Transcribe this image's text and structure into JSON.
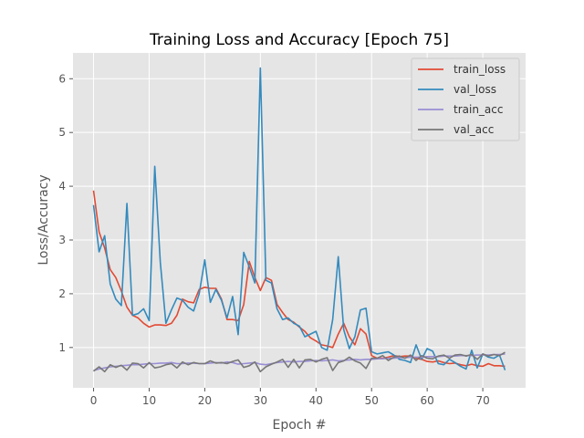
{
  "chart_data": {
    "type": "line",
    "title": "Training Loss and Accuracy [Epoch 75]",
    "xlabel": "Epoch #",
    "ylabel": "Loss/Accuracy",
    "xlim": [
      -3.7,
      77.7
    ],
    "ylim": [
      0.25,
      6.48
    ],
    "xticks": [
      0,
      10,
      20,
      30,
      40,
      50,
      60,
      70
    ],
    "yticks": [
      1,
      2,
      3,
      4,
      5,
      6
    ],
    "grid": true,
    "legend_position": "top-right",
    "x": [
      0,
      1,
      2,
      3,
      4,
      5,
      6,
      7,
      8,
      9,
      10,
      11,
      12,
      13,
      14,
      15,
      16,
      17,
      18,
      19,
      20,
      21,
      22,
      23,
      24,
      25,
      26,
      27,
      28,
      29,
      30,
      31,
      32,
      33,
      34,
      35,
      36,
      37,
      38,
      39,
      40,
      41,
      42,
      43,
      44,
      45,
      46,
      47,
      48,
      49,
      50,
      51,
      52,
      53,
      54,
      55,
      56,
      57,
      58,
      59,
      60,
      61,
      62,
      63,
      64,
      65,
      66,
      67,
      68,
      69,
      70,
      71,
      72,
      73,
      74
    ],
    "series": [
      {
        "name": "train_loss",
        "color": "#e24a33",
        "values": [
          3.92,
          3.15,
          2.85,
          2.45,
          2.3,
          2.05,
          1.75,
          1.6,
          1.55,
          1.45,
          1.38,
          1.42,
          1.42,
          1.41,
          1.45,
          1.6,
          1.9,
          1.85,
          1.83,
          2.08,
          2.12,
          2.1,
          2.1,
          1.9,
          1.52,
          1.52,
          1.5,
          1.8,
          2.6,
          2.3,
          2.06,
          2.3,
          2.25,
          1.8,
          1.65,
          1.52,
          1.47,
          1.38,
          1.3,
          1.18,
          1.12,
          1.05,
          1.03,
          1.0,
          1.25,
          1.45,
          1.2,
          1.05,
          1.35,
          1.25,
          0.85,
          0.8,
          0.8,
          0.82,
          0.85,
          0.83,
          0.84,
          0.84,
          0.8,
          0.78,
          0.74,
          0.73,
          0.75,
          0.72,
          0.7,
          0.71,
          0.68,
          0.66,
          0.69,
          0.66,
          0.65,
          0.7,
          0.66,
          0.66,
          0.65
        ]
      },
      {
        "name": "val_loss",
        "color": "#348abd",
        "values": [
          3.65,
          2.78,
          3.08,
          2.18,
          1.9,
          1.78,
          3.68,
          1.6,
          1.63,
          1.72,
          1.5,
          4.37,
          2.58,
          1.45,
          1.7,
          1.92,
          1.88,
          1.75,
          1.68,
          2.0,
          2.63,
          1.84,
          2.08,
          1.88,
          1.55,
          1.95,
          1.24,
          2.77,
          2.5,
          2.2,
          6.2,
          2.25,
          2.2,
          1.72,
          1.52,
          1.55,
          1.45,
          1.4,
          1.2,
          1.25,
          1.3,
          1.0,
          0.95,
          1.52,
          2.69,
          1.33,
          0.98,
          1.2,
          1.7,
          1.73,
          0.92,
          0.88,
          0.9,
          0.92,
          0.86,
          0.78,
          0.76,
          0.72,
          1.05,
          0.78,
          0.98,
          0.93,
          0.7,
          0.68,
          0.78,
          0.72,
          0.65,
          0.6,
          0.95,
          0.62,
          0.88,
          0.82,
          0.8,
          0.86,
          0.58
        ]
      },
      {
        "name": "train_acc",
        "color": "#988ed5",
        "values": [
          0.57,
          0.6,
          0.62,
          0.64,
          0.65,
          0.66,
          0.67,
          0.68,
          0.68,
          0.69,
          0.7,
          0.7,
          0.71,
          0.71,
          0.72,
          0.7,
          0.7,
          0.71,
          0.71,
          0.7,
          0.7,
          0.71,
          0.72,
          0.71,
          0.73,
          0.72,
          0.69,
          0.7,
          0.71,
          0.72,
          0.69,
          0.68,
          0.7,
          0.72,
          0.73,
          0.74,
          0.73,
          0.74,
          0.74,
          0.75,
          0.76,
          0.75,
          0.76,
          0.77,
          0.75,
          0.76,
          0.77,
          0.78,
          0.77,
          0.78,
          0.78,
          0.79,
          0.79,
          0.8,
          0.8,
          0.81,
          0.81,
          0.82,
          0.82,
          0.82,
          0.83,
          0.83,
          0.83,
          0.84,
          0.84,
          0.84,
          0.85,
          0.85,
          0.85,
          0.86,
          0.86,
          0.86,
          0.87,
          0.87,
          0.88
        ]
      },
      {
        "name": "val_acc",
        "color": "#777777",
        "values": [
          0.56,
          0.64,
          0.55,
          0.68,
          0.63,
          0.67,
          0.58,
          0.71,
          0.7,
          0.62,
          0.72,
          0.62,
          0.64,
          0.68,
          0.7,
          0.62,
          0.73,
          0.68,
          0.72,
          0.7,
          0.7,
          0.75,
          0.71,
          0.72,
          0.7,
          0.74,
          0.77,
          0.63,
          0.66,
          0.73,
          0.55,
          0.64,
          0.69,
          0.73,
          0.78,
          0.63,
          0.78,
          0.62,
          0.77,
          0.78,
          0.73,
          0.78,
          0.81,
          0.57,
          0.72,
          0.75,
          0.82,
          0.75,
          0.71,
          0.61,
          0.8,
          0.8,
          0.85,
          0.76,
          0.82,
          0.84,
          0.8,
          0.86,
          0.76,
          0.85,
          0.8,
          0.79,
          0.84,
          0.86,
          0.8,
          0.86,
          0.87,
          0.84,
          0.87,
          0.78,
          0.88,
          0.84,
          0.87,
          0.85,
          0.91
        ]
      }
    ]
  }
}
